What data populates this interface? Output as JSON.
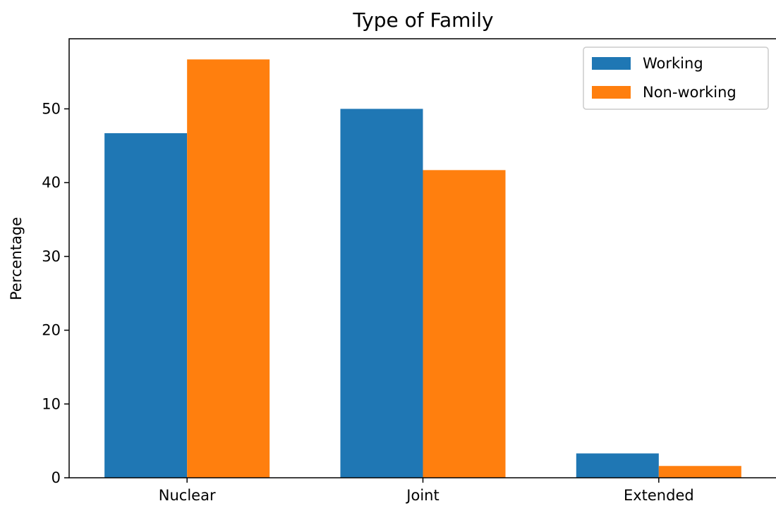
{
  "chart_data": {
    "type": "bar",
    "title": "Type of Family",
    "xlabel": "",
    "ylabel": "Percentage",
    "categories": [
      "Nuclear",
      "Joint",
      "Extended"
    ],
    "series": [
      {
        "name": "Working",
        "values": [
          46.7,
          50.0,
          3.3
        ],
        "color": "#1f77b4"
      },
      {
        "name": "Non-working",
        "values": [
          56.7,
          41.7,
          1.6
        ],
        "color": "#ff7f0e"
      }
    ],
    "ylim": [
      0,
      59.5
    ],
    "yticks": [
      0,
      10,
      20,
      30,
      40,
      50
    ],
    "grid": false,
    "legend_position": "top-right"
  }
}
